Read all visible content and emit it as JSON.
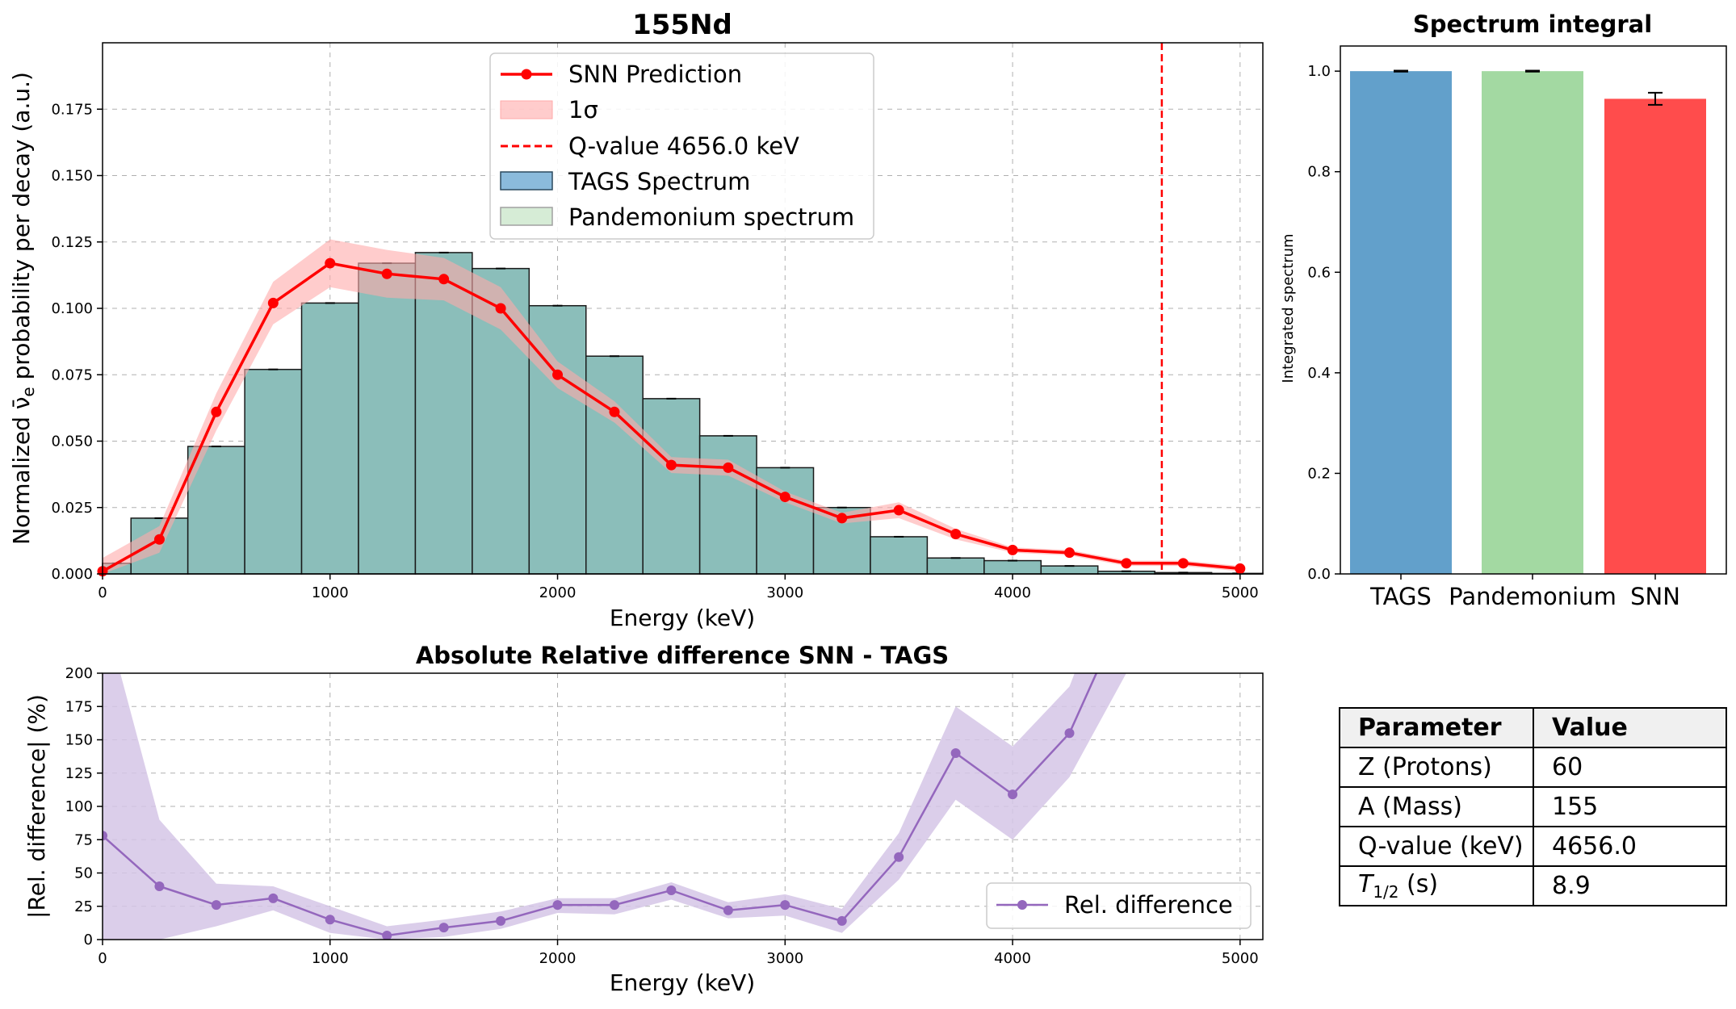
{
  "chart_data": [
    {
      "type": "bar",
      "title": "155Nd",
      "xlabel": "Energy (keV)",
      "ylabel": "Normalized ν̄_e probability per decay (a.u.)",
      "xlim": [
        0,
        5100
      ],
      "ylim": [
        0,
        0.2
      ],
      "xticks": [
        0,
        1000,
        2000,
        3000,
        4000,
        5000
      ],
      "yticks": [
        0.0,
        0.025,
        0.05,
        0.075,
        0.1,
        0.125,
        0.15,
        0.175
      ],
      "grid": true,
      "legend_position": "upper-center",
      "bin_width": 250,
      "bins": [
        0,
        125,
        375,
        625,
        875,
        1125,
        1375,
        1625,
        1875,
        2125,
        2375,
        2625,
        2875,
        3125,
        3375,
        3625,
        3875,
        4125,
        4375,
        4625,
        4875
      ],
      "series": [
        {
          "name": "TAGS Spectrum",
          "kind": "bar",
          "values": [
            0.004,
            0.021,
            0.048,
            0.077,
            0.102,
            0.117,
            0.121,
            0.115,
            0.101,
            0.082,
            0.066,
            0.052,
            0.04,
            0.025,
            0.014,
            0.006,
            0.005,
            0.003,
            0.001,
            0.0005,
            0.0002
          ]
        },
        {
          "name": "Pandemonium spectrum",
          "kind": "bar",
          "values": [
            0.004,
            0.021,
            0.048,
            0.077,
            0.102,
            0.117,
            0.121,
            0.115,
            0.101,
            0.082,
            0.066,
            0.052,
            0.04,
            0.025,
            0.014,
            0.006,
            0.005,
            0.003,
            0.001,
            0.0005,
            0.0002
          ]
        },
        {
          "name": "SNN Prediction",
          "kind": "line",
          "x": [
            0,
            250,
            500,
            750,
            1000,
            1250,
            1500,
            1750,
            2000,
            2250,
            2500,
            2750,
            3000,
            3250,
            3500,
            3750,
            4000,
            4250,
            4500,
            4750,
            5000
          ],
          "values": [
            0.001,
            0.013,
            0.061,
            0.102,
            0.117,
            0.113,
            0.111,
            0.1,
            0.075,
            0.061,
            0.041,
            0.04,
            0.029,
            0.021,
            0.024,
            0.015,
            0.009,
            0.008,
            0.004,
            0.004,
            0.002
          ],
          "sigma": [
            0.005,
            0.005,
            0.007,
            0.008,
            0.009,
            0.009,
            0.008,
            0.008,
            0.005,
            0.004,
            0.003,
            0.003,
            0.002,
            0.002,
            0.003,
            0.002,
            0.001,
            0.001,
            0.001,
            0.001,
            0.001
          ]
        },
        {
          "name": "1σ",
          "kind": "band"
        },
        {
          "name": "Q-value 4656.0 keV",
          "kind": "vline",
          "x": 4656.0
        }
      ],
      "colors": {
        "tags": "#5d9fcb",
        "pandemonium": "#b2dfb2",
        "overlap": "#8bbeba",
        "snn": "#ff0000",
        "sigma": "#ffaaaa"
      }
    },
    {
      "type": "bar",
      "title": "Spectrum integral",
      "ylabel": "Integrated spectrum",
      "categories": [
        "TAGS",
        "Pandemonium",
        "SNN"
      ],
      "values": [
        1.0,
        1.0,
        0.945
      ],
      "errors": [
        0.001,
        0.001,
        0.012
      ],
      "ylim": [
        0,
        1.05
      ],
      "yticks": [
        0.0,
        0.2,
        0.4,
        0.6,
        0.8,
        1.0
      ],
      "colors": [
        "#62a0cb",
        "#a3d9a2",
        "#ff4c4c"
      ]
    },
    {
      "type": "line",
      "title": "Absolute Relative difference SNN - TAGS",
      "xlabel": "Energy (keV)",
      "ylabel": "|Rel. difference| (%)",
      "xlim": [
        0,
        5100
      ],
      "ylim": [
        0,
        200
      ],
      "xticks": [
        0,
        1000,
        2000,
        3000,
        4000,
        5000
      ],
      "yticks": [
        0,
        25,
        50,
        75,
        100,
        125,
        150,
        175,
        200
      ],
      "grid": true,
      "legend_position": "lower-right",
      "series": [
        {
          "name": "Rel. difference",
          "x": [
            0,
            250,
            500,
            750,
            1000,
            1250,
            1500,
            1750,
            2000,
            2250,
            2500,
            2750,
            3000,
            3250,
            3500,
            3750,
            4000,
            4250,
            4500
          ],
          "values": [
            78,
            40,
            26,
            31,
            15,
            3,
            9,
            14,
            26,
            26,
            37,
            22,
            26,
            14,
            62,
            140,
            109,
            155,
            250
          ],
          "lower": [
            0,
            0,
            10,
            22,
            5,
            0,
            2,
            8,
            20,
            19,
            30,
            16,
            18,
            5,
            45,
            105,
            75,
            122,
            200
          ],
          "upper": [
            250,
            90,
            42,
            40,
            25,
            10,
            15,
            21,
            31,
            31,
            43,
            28,
            34,
            23,
            80,
            175,
            145,
            190,
            300
          ]
        }
      ],
      "color": "#9467bd",
      "band_color": "#d5c6e6"
    }
  ],
  "table": {
    "headers": [
      "Parameter",
      "Value"
    ],
    "rows": [
      {
        "param": "Z (Protons)",
        "value": "60"
      },
      {
        "param": "A (Mass)",
        "value": "155"
      },
      {
        "param": "Q-value (keV)",
        "value": "4656.0"
      },
      {
        "param_main": "T",
        "param_sub": "1/2",
        "param_rest": " (s)",
        "value": "8.9"
      }
    ]
  }
}
